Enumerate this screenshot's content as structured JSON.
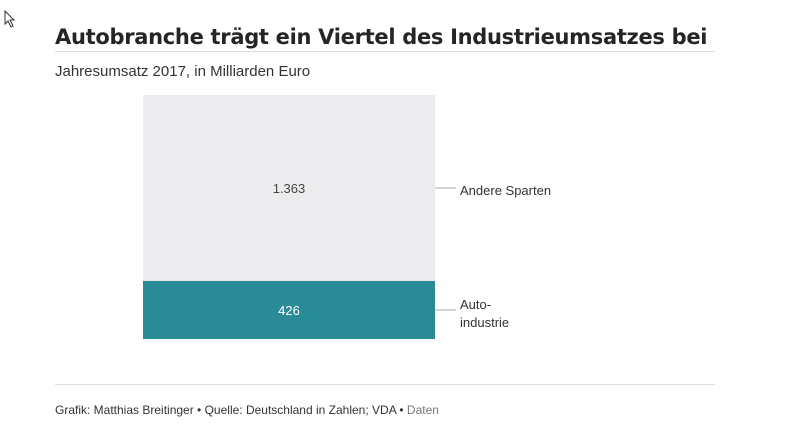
{
  "title": "Autobranche trägt ein Viertel des Industrieumsatzes bei",
  "subtitle": "Jahresumsatz 2017, in Milliarden Euro",
  "chart_data": {
    "type": "bar",
    "stacked": true,
    "categories": [
      "Jahresumsatz 2017"
    ],
    "series": [
      {
        "name": "Auto-industrie",
        "label_lines": [
          "Auto-",
          "industrie"
        ],
        "value": 426,
        "value_label": "426",
        "color": "#2a8a96"
      },
      {
        "name": "Andere Sparten",
        "label_lines": [
          "Andere Sparten"
        ],
        "value": 1363,
        "value_label": "1.363",
        "color": "#ececee"
      }
    ]
  },
  "footer": {
    "credit": "Grafik: Matthias Breitinger",
    "separator": " • ",
    "source": "Quelle: Deutschland in Zahlen; VDA",
    "data_link": "Daten"
  }
}
